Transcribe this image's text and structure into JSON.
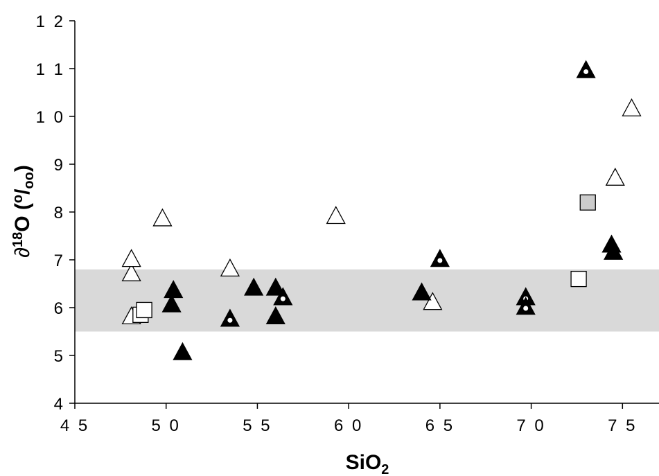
{
  "chart_data": {
    "type": "scatter",
    "title": "",
    "xlabel": {
      "main": "SiO",
      "sub": "2"
    },
    "ylabel": {
      "prefix": "∂",
      "sup": "18",
      "main": "O (",
      "sup2": "o",
      "slash": "/",
      "sub2": "oo",
      "close": ")"
    },
    "xlim": [
      45,
      77
    ],
    "ylim": [
      4,
      12
    ],
    "xticks": [
      "4 5",
      "5 0",
      "5 5",
      "6 0",
      "6 5",
      "7 0",
      "7 5"
    ],
    "xtick_values": [
      45,
      50,
      55,
      60,
      65,
      70,
      75
    ],
    "yticks": [
      "4",
      "5",
      "6",
      "7",
      "8",
      "9",
      "1 0",
      "1 1",
      "1 2"
    ],
    "ytick_values": [
      4,
      5,
      6,
      7,
      8,
      9,
      10,
      11,
      12
    ],
    "band": {
      "y_min": 5.5,
      "y_max": 6.8,
      "color": "#d9d9d9"
    },
    "grid": false,
    "legend": "none",
    "series": [
      {
        "marker": "open-triangle",
        "color": "#ffffff",
        "points": [
          [
            48.1,
            5.8
          ],
          [
            48.1,
            6.7
          ],
          [
            48.1,
            7.0
          ],
          [
            49.8,
            7.85
          ],
          [
            53.5,
            6.8
          ],
          [
            59.3,
            7.9
          ],
          [
            64.6,
            6.1
          ],
          [
            74.6,
            8.7
          ],
          [
            75.5,
            10.15
          ]
        ]
      },
      {
        "marker": "filled-triangle",
        "color": "#000000",
        "points": [
          [
            50.3,
            6.05
          ],
          [
            50.4,
            6.35
          ],
          [
            50.9,
            5.05
          ],
          [
            54.8,
            6.4
          ],
          [
            56.0,
            6.4
          ],
          [
            56.0,
            5.8
          ],
          [
            64.0,
            6.3
          ],
          [
            74.4,
            7.3
          ],
          [
            74.5,
            7.15
          ]
        ]
      },
      {
        "marker": "dotted-triangle",
        "color": "#000000",
        "points": [
          [
            53.5,
            5.75
          ],
          [
            56.4,
            6.2
          ],
          [
            65.0,
            7.0
          ],
          [
            69.7,
            6.2
          ],
          [
            69.7,
            6.0
          ],
          [
            73.0,
            10.95
          ]
        ]
      },
      {
        "marker": "open-square",
        "color": "#ffffff",
        "points": [
          [
            48.6,
            5.85
          ],
          [
            48.8,
            5.95
          ],
          [
            72.6,
            6.6
          ]
        ]
      },
      {
        "marker": "gray-square",
        "color": "#cccccc",
        "points": [
          [
            73.1,
            8.2
          ]
        ]
      }
    ]
  }
}
